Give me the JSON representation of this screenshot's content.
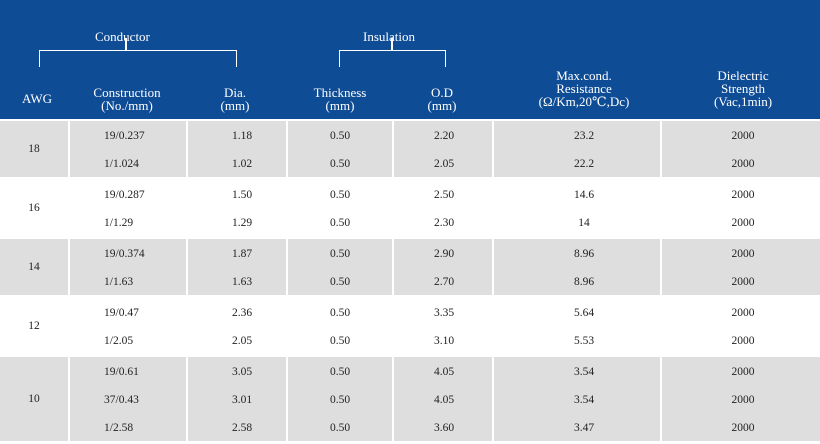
{
  "header": {
    "group_conductor": "Conductor",
    "group_insulation": "Insulation",
    "awg": "AWG",
    "construction": [
      "Construction",
      "(No./mm)"
    ],
    "dia": [
      "Dia.",
      "(mm)"
    ],
    "thickness": [
      "Thickness",
      "(mm)"
    ],
    "od": [
      "O.D",
      "(mm)"
    ],
    "resistance": [
      "Max.cond.",
      "Resistance",
      "(Ω/Km,20℃,Dc)"
    ],
    "dielectric": [
      "Dielectric",
      "Strength",
      "(Vac,1min)"
    ]
  },
  "colors": {
    "header_bg": "#0f4c96",
    "band_gray": "#dedede",
    "band_white": "#ffffff",
    "separator": "#ffffff"
  },
  "groups": [
    {
      "awg": "18",
      "band": "gray",
      "rows": [
        {
          "construction": "19/0.237",
          "dia": "1.18",
          "thickness": "0.50",
          "od": "2.20",
          "resistance": "23.2",
          "dielectric": "2000"
        },
        {
          "construction": "1/1.024",
          "dia": "1.02",
          "thickness": "0.50",
          "od": "2.05",
          "resistance": "22.2",
          "dielectric": "2000"
        }
      ]
    },
    {
      "awg": "16",
      "band": "white",
      "rows": [
        {
          "construction": "19/0.287",
          "dia": "1.50",
          "thickness": "0.50",
          "od": "2.50",
          "resistance": "14.6",
          "dielectric": "2000"
        },
        {
          "construction": "1/1.29",
          "dia": "1.29",
          "thickness": "0.50",
          "od": "2.30",
          "resistance": "14",
          "dielectric": "2000"
        }
      ]
    },
    {
      "awg": "14",
      "band": "gray",
      "rows": [
        {
          "construction": "19/0.374",
          "dia": "1.87",
          "thickness": "0.50",
          "od": "2.90",
          "resistance": "8.96",
          "dielectric": "2000"
        },
        {
          "construction": "1/1.63",
          "dia": "1.63",
          "thickness": "0.50",
          "od": "2.70",
          "resistance": "8.96",
          "dielectric": "2000"
        }
      ]
    },
    {
      "awg": "12",
      "band": "white",
      "rows": [
        {
          "construction": "19/0.47",
          "dia": "2.36",
          "thickness": "0.50",
          "od": "3.35",
          "resistance": "5.64",
          "dielectric": "2000"
        },
        {
          "construction": "1/2.05",
          "dia": "2.05",
          "thickness": "0.50",
          "od": "3.10",
          "resistance": "5.53",
          "dielectric": "2000"
        }
      ]
    },
    {
      "awg": "10",
      "band": "gray",
      "rows": [
        {
          "construction": "19/0.61",
          "dia": "3.05",
          "thickness": "0.50",
          "od": "4.05",
          "resistance": "3.54",
          "dielectric": "2000"
        },
        {
          "construction": "37/0.43",
          "dia": "3.01",
          "thickness": "0.50",
          "od": "4.05",
          "resistance": "3.54",
          "dielectric": "2000"
        },
        {
          "construction": "1/2.58",
          "dia": "2.58",
          "thickness": "0.50",
          "od": "3.60",
          "resistance": "3.47",
          "dielectric": "2000"
        }
      ]
    }
  ]
}
